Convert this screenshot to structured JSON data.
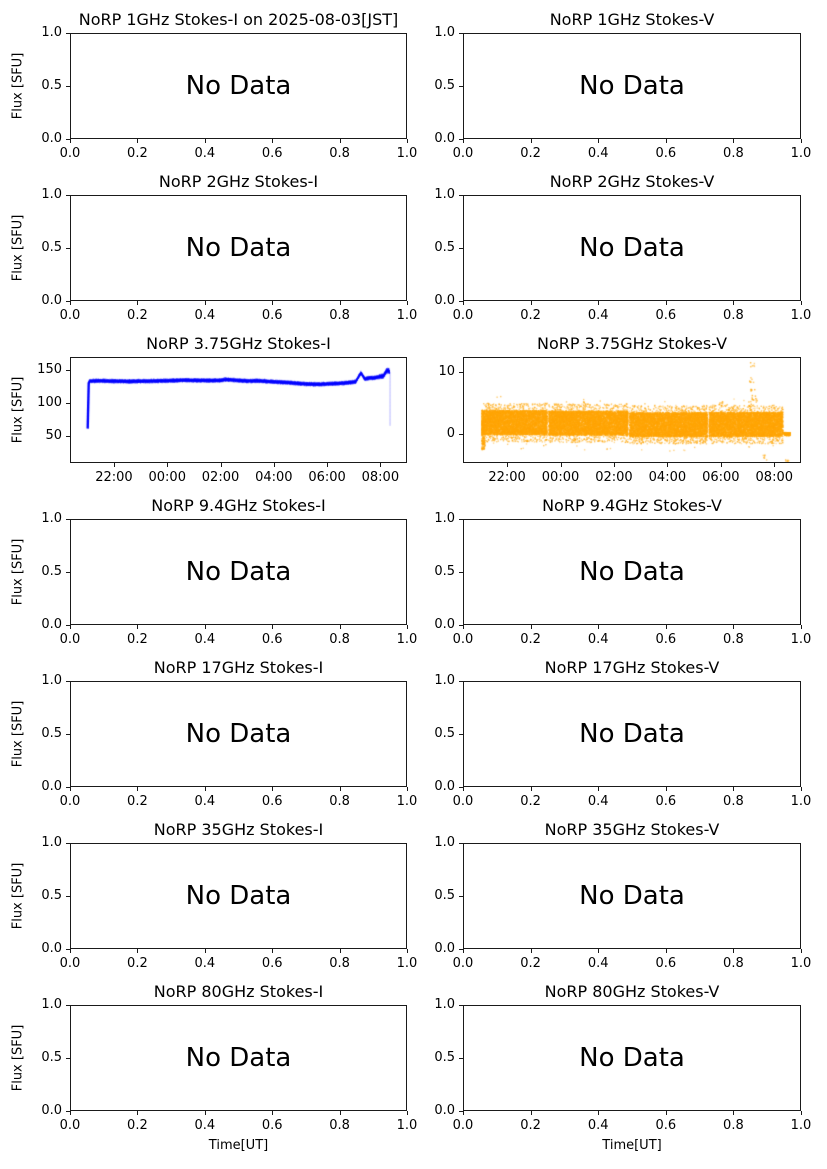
{
  "figure": {
    "background_color": "#ffffff",
    "text_color": "#000000",
    "observation_date": "2025-08-03",
    "timezone_label": "JST"
  },
  "chart_data": [
    {
      "id": "norp-1ghz-stokes-i",
      "type": "empty",
      "title": "NoRP 1GHz Stokes-I on 2025-08-03[JST]",
      "no_data_text": "No Data",
      "ylabel": "Flux [SFU]",
      "xlim": [
        0,
        1
      ],
      "ylim": [
        0,
        1
      ],
      "xtick_values": [
        0,
        0.2,
        0.4,
        0.6,
        0.8,
        1.0
      ],
      "xtick_labels": [
        "0.0",
        "0.2",
        "0.4",
        "0.6",
        "0.8",
        "1.0"
      ],
      "ytick_values": [
        0,
        0.5,
        1.0
      ],
      "ytick_labels": [
        "0.0",
        "0.5",
        "1.0"
      ]
    },
    {
      "id": "norp-1ghz-stokes-v",
      "type": "empty",
      "title": "NoRP 1GHz Stokes-V",
      "no_data_text": "No Data",
      "xlim": [
        0,
        1
      ],
      "ylim": [
        0,
        1
      ],
      "xtick_values": [
        0,
        0.2,
        0.4,
        0.6,
        0.8,
        1.0
      ],
      "xtick_labels": [
        "0.0",
        "0.2",
        "0.4",
        "0.6",
        "0.8",
        "1.0"
      ],
      "ytick_values": [
        0,
        0.5,
        1.0
      ],
      "ytick_labels": [
        "0.0",
        "0.5",
        "1.0"
      ]
    },
    {
      "id": "norp-2ghz-stokes-i",
      "type": "empty",
      "title": "NoRP 2GHz Stokes-I",
      "no_data_text": "No Data",
      "ylabel": "Flux [SFU]",
      "xlim": [
        0,
        1
      ],
      "ylim": [
        0,
        1
      ],
      "xtick_values": [
        0,
        0.2,
        0.4,
        0.6,
        0.8,
        1.0
      ],
      "xtick_labels": [
        "0.0",
        "0.2",
        "0.4",
        "0.6",
        "0.8",
        "1.0"
      ],
      "ytick_values": [
        0,
        0.5,
        1.0
      ],
      "ytick_labels": [
        "0.0",
        "0.5",
        "1.0"
      ]
    },
    {
      "id": "norp-2ghz-stokes-v",
      "type": "empty",
      "title": "NoRP 2GHz Stokes-V",
      "no_data_text": "No Data",
      "xlim": [
        0,
        1
      ],
      "ylim": [
        0,
        1
      ],
      "xtick_values": [
        0,
        0.2,
        0.4,
        0.6,
        0.8,
        1.0
      ],
      "xtick_labels": [
        "0.0",
        "0.2",
        "0.4",
        "0.6",
        "0.8",
        "1.0"
      ],
      "ytick_values": [
        0,
        0.5,
        1.0
      ],
      "ytick_labels": [
        "0.0",
        "0.5",
        "1.0"
      ]
    },
    {
      "id": "norp-375ghz-stokes-i",
      "type": "line",
      "title": "NoRP 3.75GHz Stokes-I",
      "ylabel": "Flux [SFU]",
      "color": "#0000FF",
      "units": "SFU",
      "time_axis_note": "decimal hours JST, 24 = midnight",
      "xlim": [
        20.35,
        33.0
      ],
      "ylim": [
        8,
        170
      ],
      "xtick_values": [
        22,
        24,
        26,
        28,
        30,
        32
      ],
      "xtick_labels": [
        "22:00",
        "00:00",
        "02:00",
        "04:00",
        "06:00",
        "08:00"
      ],
      "ytick_values": [
        50,
        100,
        150
      ],
      "ytick_labels": [
        "50",
        "100",
        "150"
      ],
      "series": {
        "name": "Stokes-I flux",
        "anchors": [
          [
            20.98,
            60
          ],
          [
            21.0,
            130
          ],
          [
            21.05,
            134
          ],
          [
            21.4,
            134.5
          ],
          [
            22.0,
            134
          ],
          [
            22.6,
            133.5
          ],
          [
            23.2,
            134
          ],
          [
            24.0,
            134.5
          ],
          [
            24.6,
            135.5
          ],
          [
            25.2,
            135
          ],
          [
            26.0,
            135
          ],
          [
            26.2,
            136.5
          ],
          [
            27.0,
            134
          ],
          [
            27.4,
            134.5
          ],
          [
            28.0,
            133
          ],
          [
            28.6,
            131.5
          ],
          [
            29.2,
            129.5
          ],
          [
            29.7,
            129
          ],
          [
            30.2,
            130
          ],
          [
            30.7,
            131
          ],
          [
            31.1,
            133
          ],
          [
            31.3,
            147
          ],
          [
            31.45,
            137
          ],
          [
            31.6,
            139
          ],
          [
            31.8,
            139
          ],
          [
            32.0,
            141
          ],
          [
            32.15,
            142
          ],
          [
            32.25,
            149
          ],
          [
            32.33,
            151
          ],
          [
            32.38,
            148
          ]
        ],
        "noise_sfu": 2.2,
        "start_rise": {
          "t": 20.98,
          "from": 60,
          "to": 132
        },
        "end_drop": {
          "t": 32.39,
          "from": 148,
          "to": 65
        }
      }
    },
    {
      "id": "norp-375ghz-stokes-v",
      "type": "scatter",
      "title": "NoRP 3.75GHz Stokes-V",
      "color": "#FFA500",
      "units": "SFU",
      "time_axis_note": "decimal hours JST, 24 = midnight",
      "xlim": [
        20.35,
        33.0
      ],
      "ylim": [
        -4.75,
        12.5
      ],
      "xtick_values": [
        22,
        24,
        26,
        28,
        30,
        32
      ],
      "xtick_labels": [
        "22:00",
        "00:00",
        "02:00",
        "04:00",
        "06:00",
        "08:00"
      ],
      "ytick_values": [
        0,
        10
      ],
      "ytick_labels": [
        "0",
        "10"
      ],
      "band": {
        "segments": [
          {
            "t0": 20.99,
            "t1": 23.46,
            "center": 1.9
          },
          {
            "t0": 23.52,
            "t1": 26.5,
            "center": 1.8
          },
          {
            "t0": 26.56,
            "t1": 29.49,
            "center": 1.55
          },
          {
            "t0": 29.55,
            "t1": 32.33,
            "center": 1.6
          }
        ],
        "halfwidth_dense": 2.0,
        "halfwidth_sparse": 3.2,
        "start_flare": {
          "t0": 20.99,
          "t1": 21.12,
          "min": -2.6
        }
      },
      "outliers": [
        [
          31.18,
          11.5
        ],
        [
          31.15,
          9.0
        ],
        [
          31.2,
          7.2
        ],
        [
          31.22,
          6.1
        ],
        [
          31.3,
          5.5
        ],
        [
          31.1,
          5.0
        ],
        [
          30.0,
          4.9
        ],
        [
          24.9,
          5.0
        ],
        [
          31.65,
          -3.9
        ],
        [
          32.5,
          -4.2
        ]
      ],
      "tail": {
        "t0": 32.36,
        "t1": 32.6,
        "value": 0,
        "halfwidth": 0.25
      }
    },
    {
      "id": "norp-94ghz-stokes-i",
      "type": "empty",
      "title": "NoRP 9.4GHz Stokes-I",
      "no_data_text": "No Data",
      "ylabel": "Flux [SFU]",
      "xlim": [
        0,
        1
      ],
      "ylim": [
        0,
        1
      ],
      "xtick_values": [
        0,
        0.2,
        0.4,
        0.6,
        0.8,
        1.0
      ],
      "xtick_labels": [
        "0.0",
        "0.2",
        "0.4",
        "0.6",
        "0.8",
        "1.0"
      ],
      "ytick_values": [
        0,
        0.5,
        1.0
      ],
      "ytick_labels": [
        "0.0",
        "0.5",
        "1.0"
      ]
    },
    {
      "id": "norp-94ghz-stokes-v",
      "type": "empty",
      "title": "NoRP 9.4GHz Stokes-V",
      "no_data_text": "No Data",
      "xlim": [
        0,
        1
      ],
      "ylim": [
        0,
        1
      ],
      "xtick_values": [
        0,
        0.2,
        0.4,
        0.6,
        0.8,
        1.0
      ],
      "xtick_labels": [
        "0.0",
        "0.2",
        "0.4",
        "0.6",
        "0.8",
        "1.0"
      ],
      "ytick_values": [
        0,
        0.5,
        1.0
      ],
      "ytick_labels": [
        "0.0",
        "0.5",
        "1.0"
      ]
    },
    {
      "id": "norp-17ghz-stokes-i",
      "type": "empty",
      "title": "NoRP 17GHz Stokes-I",
      "no_data_text": "No Data",
      "ylabel": "Flux [SFU]",
      "xlim": [
        0,
        1
      ],
      "ylim": [
        0,
        1
      ],
      "xtick_values": [
        0,
        0.2,
        0.4,
        0.6,
        0.8,
        1.0
      ],
      "xtick_labels": [
        "0.0",
        "0.2",
        "0.4",
        "0.6",
        "0.8",
        "1.0"
      ],
      "ytick_values": [
        0,
        0.5,
        1.0
      ],
      "ytick_labels": [
        "0.0",
        "0.5",
        "1.0"
      ]
    },
    {
      "id": "norp-17ghz-stokes-v",
      "type": "empty",
      "title": "NoRP 17GHz Stokes-V",
      "no_data_text": "No Data",
      "xlim": [
        0,
        1
      ],
      "ylim": [
        0,
        1
      ],
      "xtick_values": [
        0,
        0.2,
        0.4,
        0.6,
        0.8,
        1.0
      ],
      "xtick_labels": [
        "0.0",
        "0.2",
        "0.4",
        "0.6",
        "0.8",
        "1.0"
      ],
      "ytick_values": [
        0,
        0.5,
        1.0
      ],
      "ytick_labels": [
        "0.0",
        "0.5",
        "1.0"
      ]
    },
    {
      "id": "norp-35ghz-stokes-i",
      "type": "empty",
      "title": "NoRP 35GHz Stokes-I",
      "no_data_text": "No Data",
      "ylabel": "Flux [SFU]",
      "xlim": [
        0,
        1
      ],
      "ylim": [
        0,
        1
      ],
      "xtick_values": [
        0,
        0.2,
        0.4,
        0.6,
        0.8,
        1.0
      ],
      "xtick_labels": [
        "0.0",
        "0.2",
        "0.4",
        "0.6",
        "0.8",
        "1.0"
      ],
      "ytick_values": [
        0,
        0.5,
        1.0
      ],
      "ytick_labels": [
        "0.0",
        "0.5",
        "1.0"
      ]
    },
    {
      "id": "norp-35ghz-stokes-v",
      "type": "empty",
      "title": "NoRP 35GHz Stokes-V",
      "no_data_text": "No Data",
      "xlim": [
        0,
        1
      ],
      "ylim": [
        0,
        1
      ],
      "xtick_values": [
        0,
        0.2,
        0.4,
        0.6,
        0.8,
        1.0
      ],
      "xtick_labels": [
        "0.0",
        "0.2",
        "0.4",
        "0.6",
        "0.8",
        "1.0"
      ],
      "ytick_values": [
        0,
        0.5,
        1.0
      ],
      "ytick_labels": [
        "0.0",
        "0.5",
        "1.0"
      ]
    },
    {
      "id": "norp-80ghz-stokes-i",
      "type": "empty",
      "title": "NoRP 80GHz Stokes-I",
      "no_data_text": "No Data",
      "ylabel": "Flux [SFU]",
      "xlabel": "Time[UT]",
      "xlim": [
        0,
        1
      ],
      "ylim": [
        0,
        1
      ],
      "xtick_values": [
        0,
        0.2,
        0.4,
        0.6,
        0.8,
        1.0
      ],
      "xtick_labels": [
        "0.0",
        "0.2",
        "0.4",
        "0.6",
        "0.8",
        "1.0"
      ],
      "ytick_values": [
        0,
        0.5,
        1.0
      ],
      "ytick_labels": [
        "0.0",
        "0.5",
        "1.0"
      ]
    },
    {
      "id": "norp-80ghz-stokes-v",
      "type": "empty",
      "title": "NoRP 80GHz Stokes-V",
      "no_data_text": "No Data",
      "xlabel": "Time[UT]",
      "xlim": [
        0,
        1
      ],
      "ylim": [
        0,
        1
      ],
      "xtick_values": [
        0,
        0.2,
        0.4,
        0.6,
        0.8,
        1.0
      ],
      "xtick_labels": [
        "0.0",
        "0.2",
        "0.4",
        "0.6",
        "0.8",
        "1.0"
      ],
      "ytick_values": [
        0,
        0.5,
        1.0
      ],
      "ytick_labels": [
        "0.0",
        "0.5",
        "1.0"
      ]
    }
  ]
}
